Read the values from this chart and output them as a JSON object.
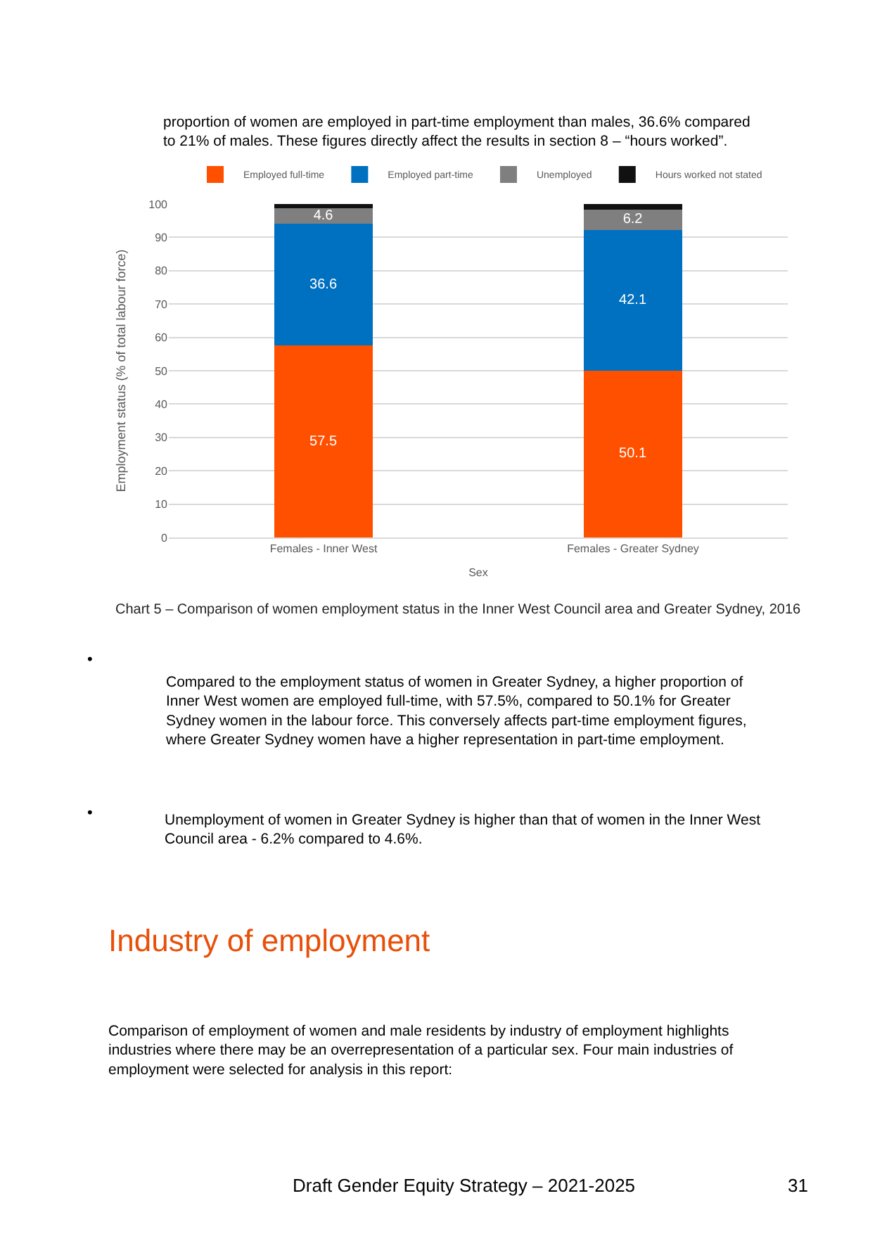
{
  "chart_data": {
    "type": "bar",
    "stacked": true,
    "title": "Chart 5 – Comparison of women employment status in the Inner West Council area and Greater Sydney, 2016",
    "xlabel": "Sex",
    "ylabel": "Employment status (% of total labour force)",
    "categories": [
      "Females - Inner West",
      "Females - Greater Sydney"
    ],
    "series": [
      {
        "name": "Employed full-time",
        "color": "#ff5000",
        "values": [
          57.5,
          50.1
        ],
        "value_labels": [
          "57.5",
          "50.1"
        ]
      },
      {
        "name": "Employed part-time",
        "color": "#0070c0",
        "values": [
          36.6,
          42.1
        ],
        "value_labels": [
          "36.6",
          "42.1"
        ]
      },
      {
        "name": "Unemployed",
        "color": "#7f7f7f",
        "values": [
          4.6,
          6.2
        ],
        "value_labels": [
          "4.6",
          "6.2"
        ]
      },
      {
        "name": "Hours worked not stated",
        "color": "#111111",
        "values": [
          1.3,
          1.6
        ],
        "value_labels": [
          null,
          null
        ]
      }
    ],
    "ylim": [
      0,
      100
    ],
    "yticks": [
      0,
      10,
      20,
      30,
      40,
      50,
      60,
      70,
      80,
      90,
      100
    ],
    "grid": "y",
    "legend": "top",
    "annotations": [
      "proportion of women are employed in part-time employment than males, 36.6% compared\nto 21% of males. These figures directly affect the results in section 8 – “hours worked”.",
      "•",
      "Compared to the employment status of women in Greater Sydney, a higher proportion of\nInner West women are employed full-time, with 57.5%, compared to 50.1% for Greater\nSydney women in the labour force. This conversely affects part-time employment figures,\nwhere Greater Sydney women have a higher representation in part-time employment.",
      "•",
      "Unemployment of women in Greater Sydney is higher than that of women in the Inner West\nCouncil area - 6.2% compared to 4.6%.",
      "Industry of employment",
      "Comparison of employment of women and male residents by industry of employment highlights\nindustries where there may be an overrepresentation of a particular sex. Four main industries of\nemployment were selected for analysis in this report:",
      "Draft Gender Equity Strategy – 2021-2025",
      "31"
    ]
  }
}
